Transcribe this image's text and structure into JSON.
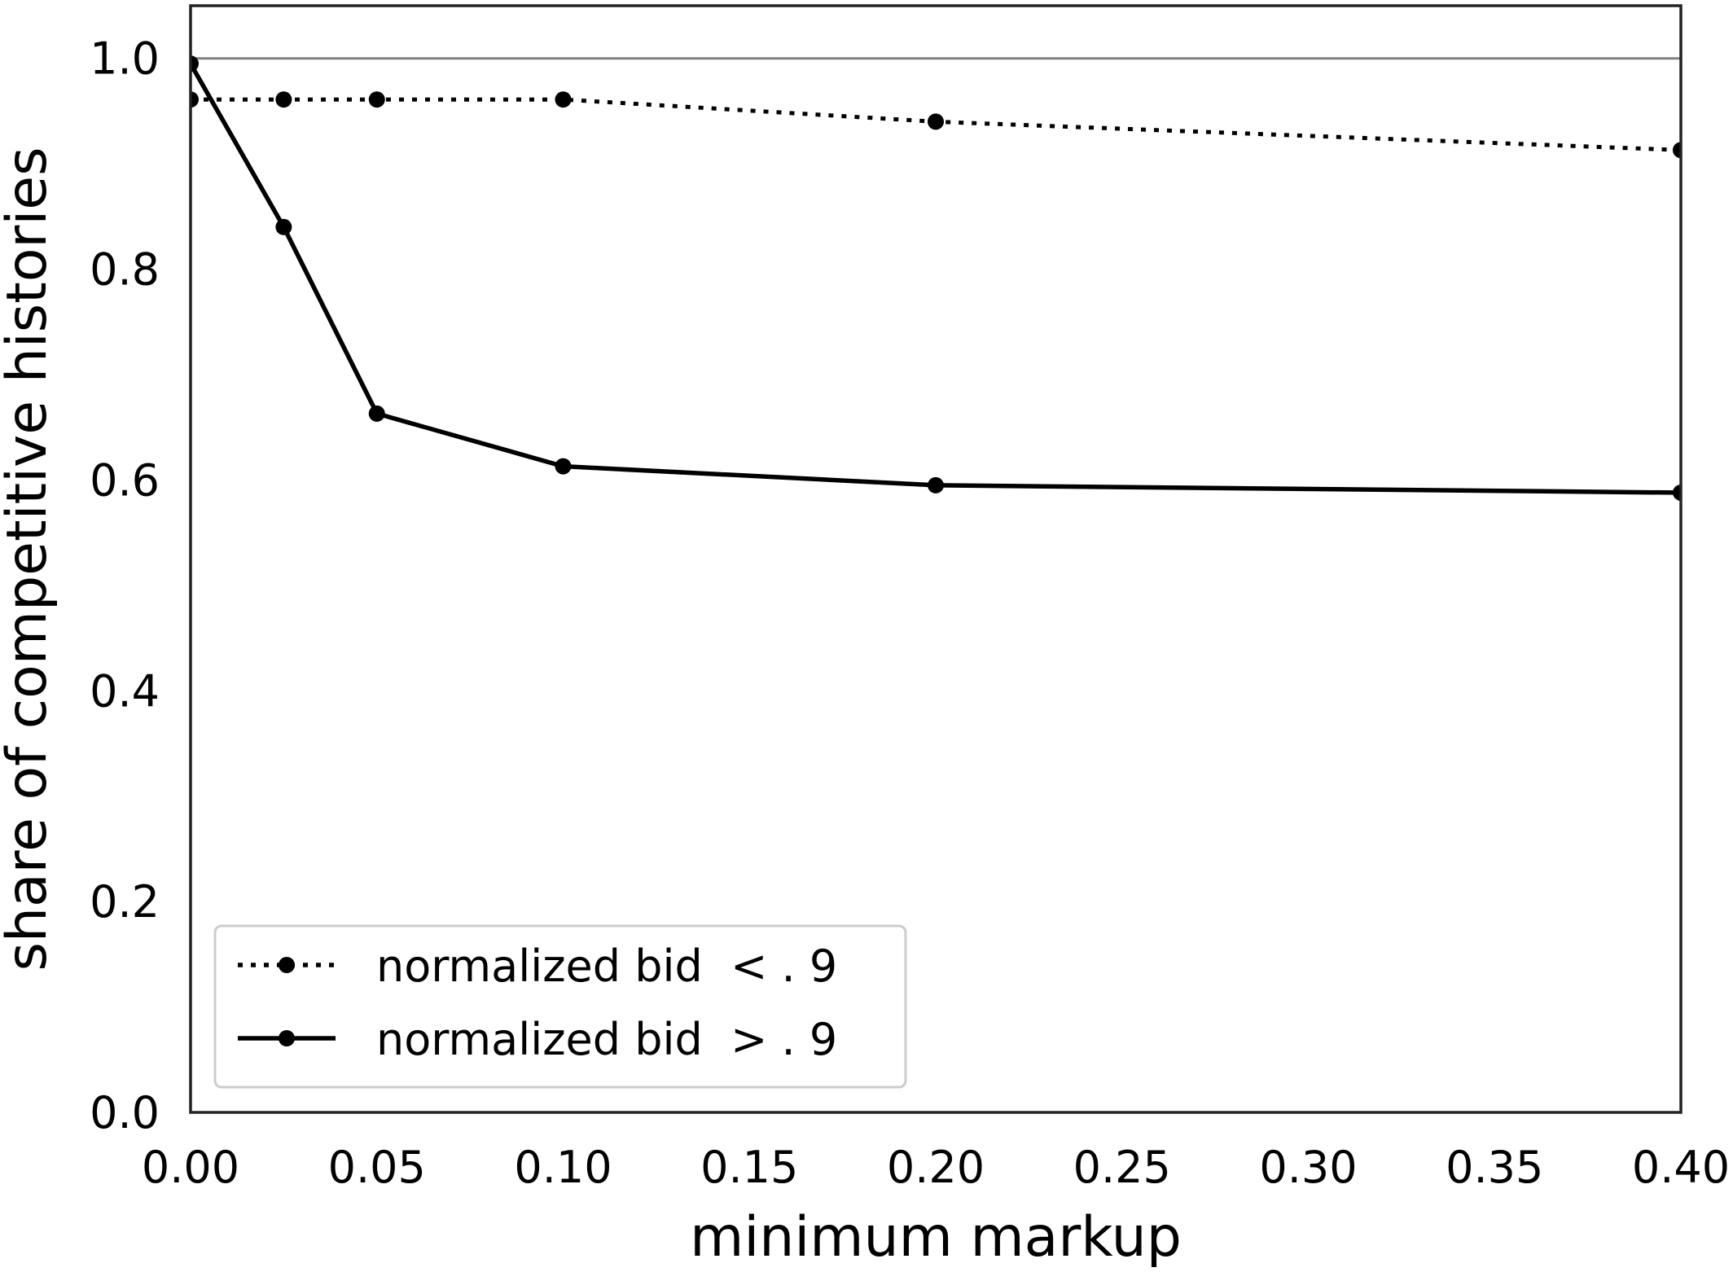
{
  "chart_data": {
    "type": "line",
    "xlabel": "minimum markup",
    "ylabel": "share of competitive histories",
    "xlim": [
      0.0,
      0.4
    ],
    "ylim": [
      0.0,
      1.05
    ],
    "xticks": [
      "0.00",
      "0.05",
      "0.10",
      "0.15",
      "0.20",
      "0.25",
      "0.30",
      "0.35",
      "0.40"
    ],
    "yticks": [
      "0.0",
      "0.2",
      "0.4",
      "0.6",
      "0.8",
      "1.0"
    ],
    "grid": false,
    "reference_line": {
      "y": 1.0,
      "color": "#808080"
    },
    "legend": {
      "placement": "lower-left"
    },
    "series": [
      {
        "name": "normalized bid  < . 9",
        "style": "dotted",
        "marker": "circle",
        "color": "#000000",
        "x": [
          0.0,
          0.025,
          0.05,
          0.1,
          0.2,
          0.4
        ],
        "y": [
          0.961,
          0.961,
          0.961,
          0.961,
          0.94,
          0.913
        ]
      },
      {
        "name": "normalized bid  > . 9",
        "style": "solid",
        "marker": "circle",
        "color": "#000000",
        "x": [
          0.0,
          0.025,
          0.05,
          0.1,
          0.2,
          0.4
        ],
        "y": [
          0.995,
          0.84,
          0.663,
          0.613,
          0.595,
          0.588
        ]
      }
    ]
  }
}
